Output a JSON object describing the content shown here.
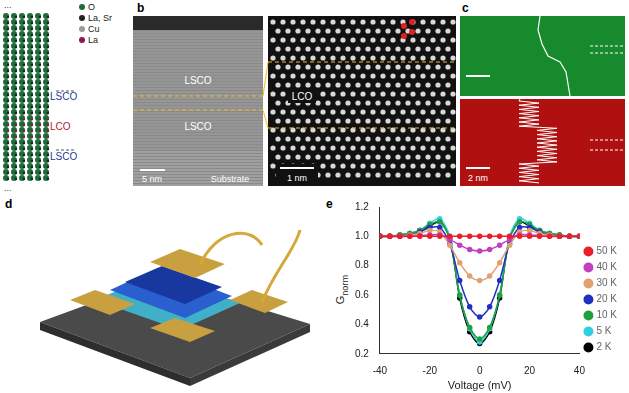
{
  "figure": {
    "a": {
      "ellipsis": "...",
      "legend": [
        {
          "label": "O",
          "color": "#1d6b3a"
        },
        {
          "label": "La, Sr",
          "color": "#222222"
        },
        {
          "label": "Cu",
          "color": "#9a9a9a"
        },
        {
          "label": "La",
          "color": "#8b1a4a"
        }
      ],
      "layers": [
        "LSCO",
        "LCO",
        "LSCO"
      ]
    },
    "b": {
      "label": "b",
      "left": {
        "layers": [
          "LSCO",
          "LSCO"
        ],
        "scale_bar": "5 nm",
        "substrate": "Substrate"
      },
      "right": {
        "layer": "LCO",
        "scale_bar": "1 nm"
      }
    },
    "c": {
      "label": "c",
      "scale_bar": "2 nm"
    },
    "d": {
      "label": "d"
    },
    "e": {
      "label": "e"
    }
  },
  "chart_data": {
    "type": "line",
    "x_label": "Voltage (mV)",
    "y_label": {
      "text": "G",
      "subscript": "norm"
    },
    "x": [
      -40,
      -36,
      -32,
      -28,
      -24,
      -20,
      -16,
      -12,
      -8,
      -4,
      0,
      4,
      8,
      12,
      16,
      20,
      24,
      28,
      32,
      36,
      40
    ],
    "xlim": [
      -40,
      40
    ],
    "xticks": [
      -40,
      -20,
      0,
      20,
      40
    ],
    "ylim": [
      0.2,
      1.2
    ],
    "yticks": [
      0.2,
      0.4,
      0.6,
      0.8,
      {
        "value": 1,
        "label": "1.0"
      },
      1.2
    ],
    "grid": false,
    "legend": "right",
    "marker": "circle",
    "line_style": "solid",
    "series": [
      {
        "name": "50 K",
        "color": "#e8202a",
        "values": [
          1.0,
          1.0,
          1.0,
          1.0,
          1.0,
          1.0,
          1.0,
          1.0,
          1.0,
          1.0,
          1.0,
          1.0,
          1.0,
          1.0,
          1.0,
          1.0,
          1.0,
          1.0,
          1.0,
          1.0,
          1.0
        ]
      },
      {
        "name": "40 K",
        "color": "#c040c0",
        "values": [
          1.0,
          1.0,
          1.0,
          1.0,
          1.005,
          1.01,
          1.01,
          0.98,
          0.94,
          0.91,
          0.9,
          0.91,
          0.94,
          0.98,
          1.01,
          1.01,
          1.005,
          1.0,
          1.0,
          1.0,
          1.0
        ]
      },
      {
        "name": "30 K",
        "color": "#e0a070",
        "values": [
          1.0,
          1.0,
          1.0,
          1.01,
          1.02,
          1.04,
          1.03,
          0.94,
          0.82,
          0.73,
          0.7,
          0.73,
          0.82,
          0.94,
          1.03,
          1.04,
          1.02,
          1.01,
          1.0,
          1.0,
          1.0
        ]
      },
      {
        "name": "20 K",
        "color": "#2030c0",
        "values": [
          1.0,
          1.0,
          1.0,
          1.01,
          1.03,
          1.06,
          1.06,
          0.95,
          0.7,
          0.52,
          0.45,
          0.52,
          0.7,
          0.95,
          1.06,
          1.06,
          1.03,
          1.01,
          1.0,
          1.0,
          1.0
        ]
      },
      {
        "name": "10 K",
        "color": "#20a040",
        "values": [
          1.0,
          1.0,
          1.01,
          1.02,
          1.04,
          1.08,
          1.1,
          0.98,
          0.6,
          0.38,
          0.3,
          0.38,
          0.6,
          0.98,
          1.1,
          1.08,
          1.04,
          1.02,
          1.01,
          1.0,
          1.0
        ]
      },
      {
        "name": "5 K",
        "color": "#30d0e0",
        "values": [
          1.0,
          1.0,
          1.01,
          1.02,
          1.04,
          1.09,
          1.12,
          1.0,
          0.6,
          0.37,
          0.28,
          0.37,
          0.6,
          1.0,
          1.12,
          1.09,
          1.04,
          1.02,
          1.01,
          1.0,
          1.0
        ]
      },
      {
        "name": "2 K",
        "color": "#000000",
        "values": [
          1.0,
          1.0,
          1.01,
          1.02,
          1.04,
          1.07,
          1.1,
          0.99,
          0.58,
          0.35,
          0.27,
          0.35,
          0.58,
          0.99,
          1.1,
          1.07,
          1.04,
          1.02,
          1.01,
          1.0,
          1.0
        ]
      }
    ]
  }
}
